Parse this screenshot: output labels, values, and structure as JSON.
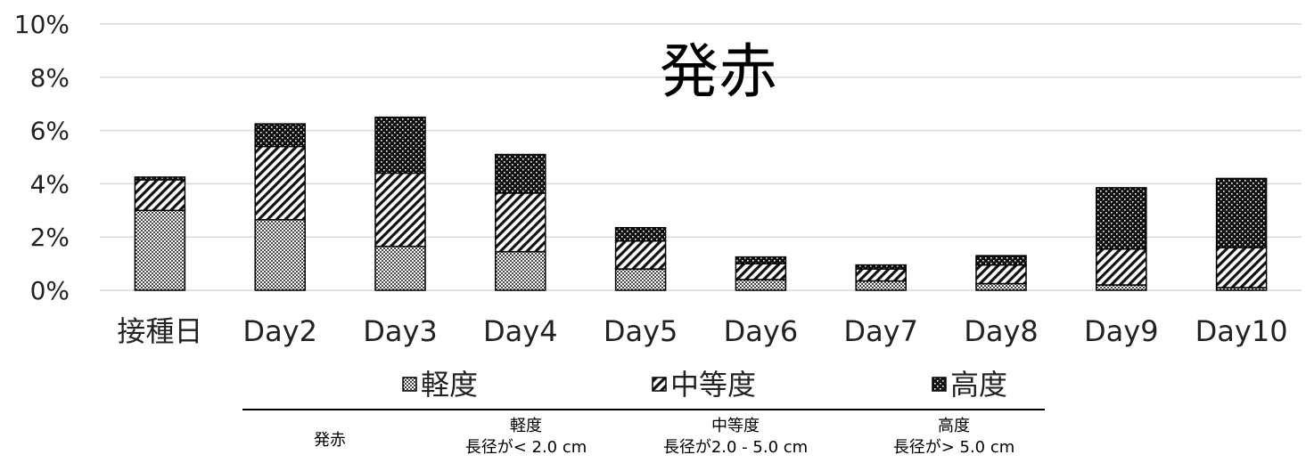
{
  "chart_data": {
    "type": "bar",
    "stacked": true,
    "title": "発赤",
    "categories": [
      "接種日",
      "Day2",
      "Day3",
      "Day4",
      "Day5",
      "Day6",
      "Day7",
      "Day8",
      "Day9",
      "Day10"
    ],
    "series": [
      {
        "name": "軽度",
        "values": [
          3.0,
          2.65,
          1.65,
          1.45,
          0.8,
          0.4,
          0.35,
          0.25,
          0.2,
          0.1
        ]
      },
      {
        "name": "中等度",
        "values": [
          1.15,
          2.75,
          2.75,
          2.2,
          1.05,
          0.6,
          0.45,
          0.7,
          1.35,
          1.5
        ]
      },
      {
        "name": "高度",
        "values": [
          0.1,
          0.85,
          2.1,
          1.45,
          0.5,
          0.25,
          0.15,
          0.35,
          2.3,
          2.6
        ]
      }
    ],
    "yticks": [
      "0%",
      "2%",
      "4%",
      "6%",
      "8%",
      "10%"
    ],
    "ylim": [
      0,
      10
    ],
    "legend_position": "bottom",
    "grid": true,
    "colors": {
      "gridline": "#d9d9d9",
      "bar_outline": "#000000"
    }
  },
  "notes": {
    "label": "発赤",
    "columns": [
      {
        "name": "軽度",
        "criteria": "長径が< 2.0 cm"
      },
      {
        "name": "中等度",
        "criteria": "長径が2.0 - 5.0 cm"
      },
      {
        "name": "高度",
        "criteria": "長径が> 5.0 cm"
      }
    ]
  }
}
